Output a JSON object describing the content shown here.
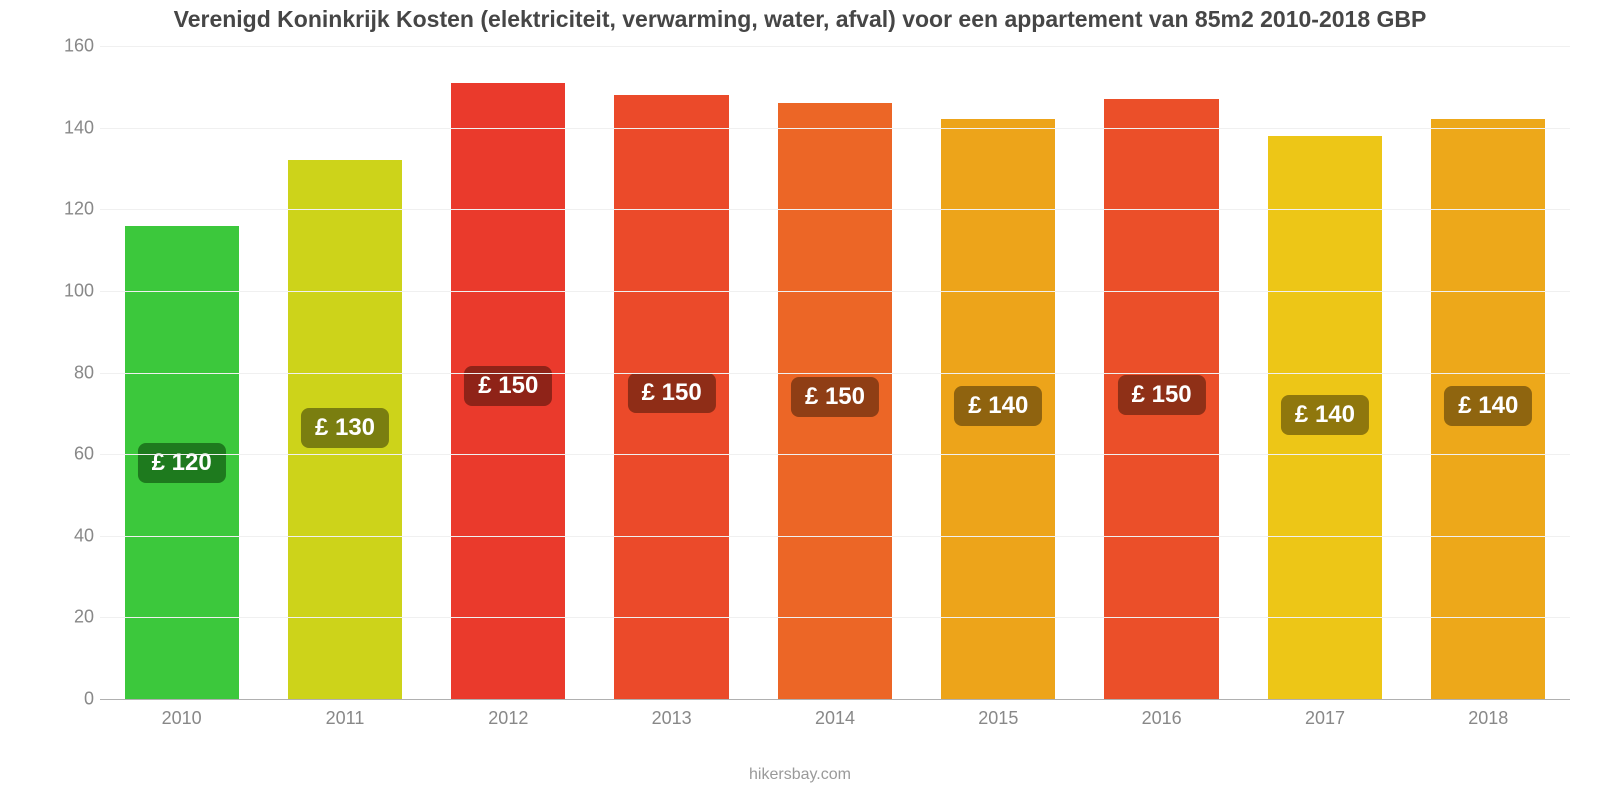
{
  "chart": {
    "type": "bar",
    "title": "Verenigd Koninkrijk Kosten (elektriciteit, verwarming, water, afval) voor een appartement van 85m2 2010-2018 GBP",
    "title_fontsize": 23,
    "title_color": "#464646",
    "background_color": "#ffffff",
    "grid_color": "#f0f0f0",
    "axis_font_color": "#888888",
    "axis_fontsize": 18,
    "ylim_min": 0,
    "ylim_max": 160,
    "ytick_step": 20,
    "bar_width_pct": 70,
    "badge_fontsize": 24,
    "badge_text_color": "#ffffff",
    "footer": "hikersbay.com",
    "footer_color": "#9a9a9a",
    "footer_fontsize": 16,
    "categories": [
      "2010",
      "2011",
      "2012",
      "2013",
      "2014",
      "2015",
      "2016",
      "2017",
      "2018"
    ],
    "values": [
      116,
      132,
      151,
      148,
      146,
      142,
      147,
      138,
      142
    ],
    "labels": [
      "£ 120",
      "£ 130",
      "£ 150",
      "£ 150",
      "£ 150",
      "£ 140",
      "£ 150",
      "£ 140",
      "£ 140"
    ],
    "bar_colors": [
      "#3cc83c",
      "#cdd31a",
      "#ea3a2c",
      "#eb4a2a",
      "#ec6626",
      "#eda41a",
      "#eb4f29",
      "#edc617",
      "#eda81a"
    ],
    "badge_colors": [
      "#1e7a1e",
      "#7a7e10",
      "#8f2318",
      "#8f2d17",
      "#8f3e15",
      "#8f630f",
      "#8f3017",
      "#8f770d",
      "#8f650f"
    ]
  }
}
